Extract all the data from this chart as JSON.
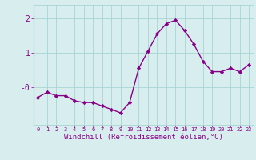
{
  "x": [
    0,
    1,
    2,
    3,
    4,
    5,
    6,
    7,
    8,
    9,
    10,
    11,
    12,
    13,
    14,
    15,
    16,
    17,
    18,
    19,
    20,
    21,
    22,
    23
  ],
  "y": [
    -0.3,
    -0.15,
    -0.25,
    -0.25,
    -0.4,
    -0.45,
    -0.45,
    -0.55,
    -0.65,
    -0.75,
    -0.45,
    0.55,
    1.05,
    1.55,
    1.85,
    1.95,
    1.65,
    1.25,
    0.75,
    0.45,
    0.45,
    0.55,
    0.45,
    0.65
  ],
  "line_color": "#880088",
  "marker": "D",
  "markersize": 2.2,
  "linewidth": 1.0,
  "bg_color": "#d8eeee",
  "grid_color": "#a8d4d4",
  "tick_color": "#880088",
  "xlabel": "Windchill (Refroidissement éolien,°C)",
  "xlabel_fontsize": 6.5,
  "ytick_labels": [
    "2",
    "1",
    "-0"
  ],
  "ytick_values": [
    2.0,
    1.0,
    0.0
  ],
  "ylim": [
    -1.1,
    2.4
  ],
  "xlim": [
    -0.5,
    23.5
  ],
  "xtick_fontsize": 5.0,
  "ytick_fontsize": 7.0
}
